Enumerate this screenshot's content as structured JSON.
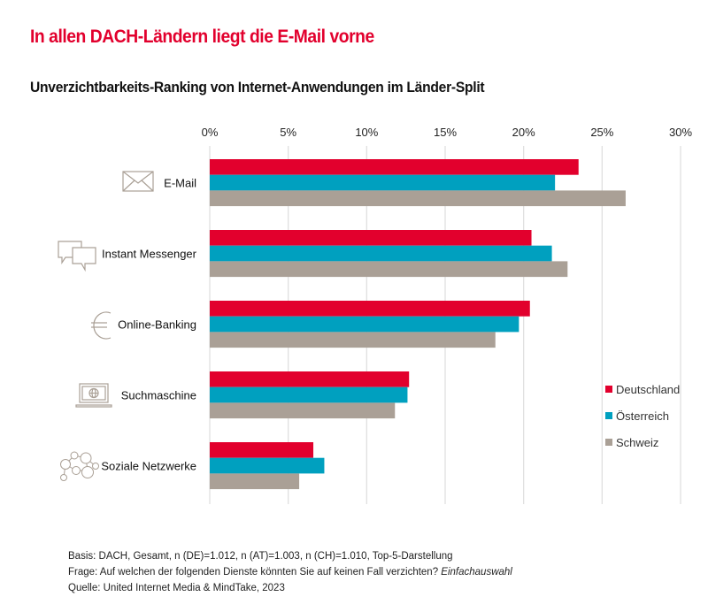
{
  "header": {
    "title": "In allen DACH-Ländern liegt die E-Mail vorne",
    "subtitle": "Unverzichtbarkeits-Ranking von Internet-Anwendungen im Länder-Split"
  },
  "colors": {
    "Deutschland": "#e2002d",
    "Österreich": "#00a0bf",
    "Schweiz": "#aaa096",
    "title": "#e2002d",
    "grid": "#e0e0e0",
    "icon": "#aaa096"
  },
  "chart_data": {
    "type": "bar",
    "orientation": "horizontal",
    "title": "Unverzichtbarkeits-Ranking von Internet-Anwendungen im Länder-Split",
    "xlabel": "",
    "ylabel": "",
    "xlim": [
      0,
      30
    ],
    "x_ticks": [
      0,
      5,
      10,
      15,
      20,
      25,
      30
    ],
    "x_tick_labels": [
      "0%",
      "5%",
      "10%",
      "15%",
      "20%",
      "25%",
      "30%"
    ],
    "x_axis_position": "top",
    "grid": true,
    "categories": [
      "E-Mail",
      "Instant Messenger",
      "Online-Banking",
      "Suchmaschine",
      "Soziale Netzwerke"
    ],
    "category_icons": [
      "envelope-icon",
      "chat-bubbles-icon",
      "euro-icon",
      "laptop-globe-icon",
      "social-network-icon"
    ],
    "series": [
      {
        "name": "Deutschland",
        "values": [
          23.5,
          20.5,
          20.4,
          12.7,
          6.6
        ]
      },
      {
        "name": "Österreich",
        "values": [
          22.0,
          21.8,
          19.7,
          12.6,
          7.3
        ]
      },
      {
        "name": "Schweiz",
        "values": [
          26.5,
          22.8,
          18.2,
          11.8,
          5.7
        ]
      }
    ],
    "legend": {
      "position": "right",
      "entries": [
        "Deutschland",
        "Österreich",
        "Schweiz"
      ]
    },
    "unit": "%"
  },
  "footer": {
    "basis": "Basis: DACH, Gesamt, n (DE)=1.012, n (AT)=1.003, n (CH)=1.010, Top-5-Darstellung",
    "frage": "Frage: Auf welchen der folgenden Dienste könnten Sie auf keinen Fall verzichten?",
    "frage_note": "Einfachauswahl",
    "quelle": "Quelle: United Internet Media & MindTake, 2023"
  }
}
